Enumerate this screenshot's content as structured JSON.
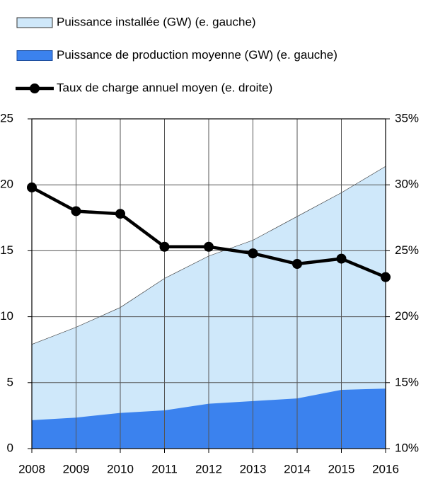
{
  "chart_data": {
    "type": "area-line",
    "categories": [
      "2008",
      "2009",
      "2010",
      "2011",
      "2012",
      "2013",
      "2014",
      "2015",
      "2016"
    ],
    "series": [
      {
        "name": "Puissance installée (GW) (e. gauche)",
        "type": "area",
        "color": "#cfe8fa",
        "values": [
          7.9,
          9.2,
          10.7,
          12.9,
          14.6,
          15.8,
          17.6,
          19.4,
          21.4
        ]
      },
      {
        "name": "Puissance de production moyenne (GW) (e. gauche)",
        "type": "area",
        "color": "#3b82ee",
        "values": [
          2.15,
          2.35,
          2.7,
          2.9,
          3.4,
          3.6,
          3.8,
          4.45,
          4.55
        ]
      },
      {
        "name": "Taux de charge annuel moyen (e. droite)",
        "type": "line",
        "axis": "y2",
        "color": "#000000",
        "values": [
          29.8,
          28.0,
          27.8,
          25.3,
          25.3,
          24.8,
          24.0,
          24.4,
          23.0
        ]
      }
    ],
    "ylim": [
      0,
      25
    ],
    "yticks": [
      0,
      5,
      10,
      15,
      20,
      25
    ],
    "y2lim": [
      10,
      35
    ],
    "y2ticks": [
      {
        "value": 10,
        "label": "10%"
      },
      {
        "value": 15,
        "label": "15%"
      },
      {
        "value": 20,
        "label": "20%"
      },
      {
        "value": 25,
        "label": "25%"
      },
      {
        "value": 30,
        "label": "30%"
      },
      {
        "value": 35,
        "label": "35%"
      }
    ],
    "grid": true,
    "legend": "top"
  }
}
